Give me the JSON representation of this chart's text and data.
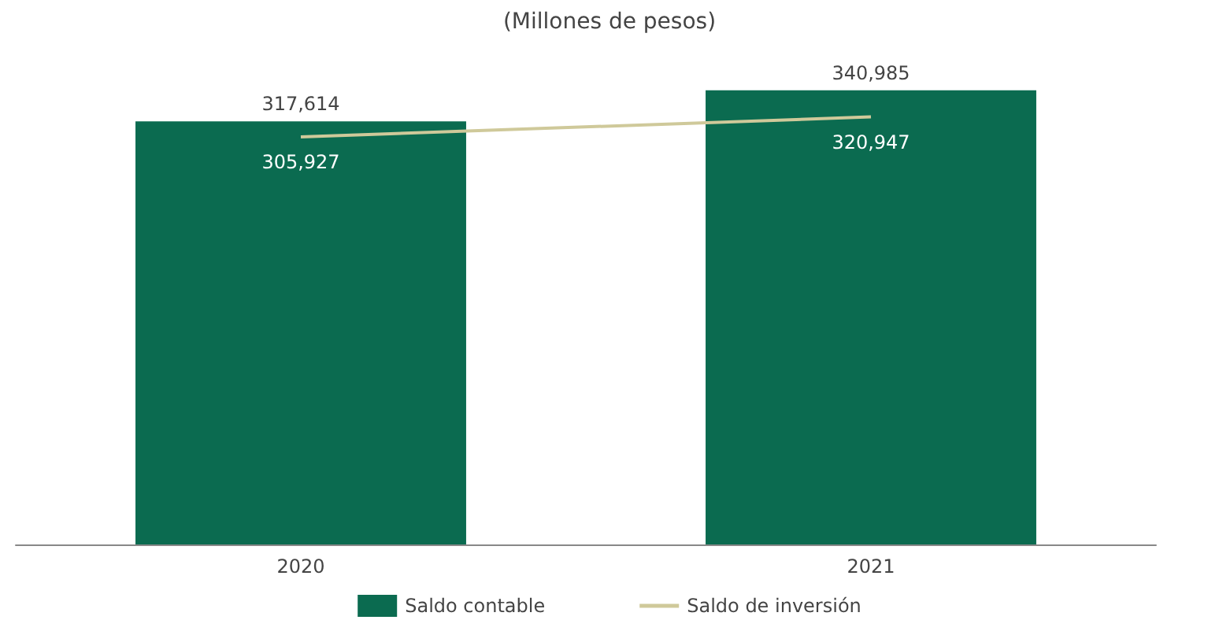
{
  "chart_data": {
    "type": "bar",
    "title": "(Millones de pesos)",
    "categories": [
      "2020",
      "2021"
    ],
    "series": [
      {
        "name": "Saldo contable",
        "color": "#0b6b50",
        "values": [
          317614,
          340985
        ],
        "value_labels": [
          "317,614",
          "340,985"
        ]
      },
      {
        "name": "Saldo de inversión",
        "type": "line",
        "color": "#cfc99a",
        "values": [
          305927,
          320947
        ],
        "value_labels": [
          "305,927",
          "320,947"
        ]
      }
    ],
    "legend": "bottom",
    "marker": "none"
  }
}
